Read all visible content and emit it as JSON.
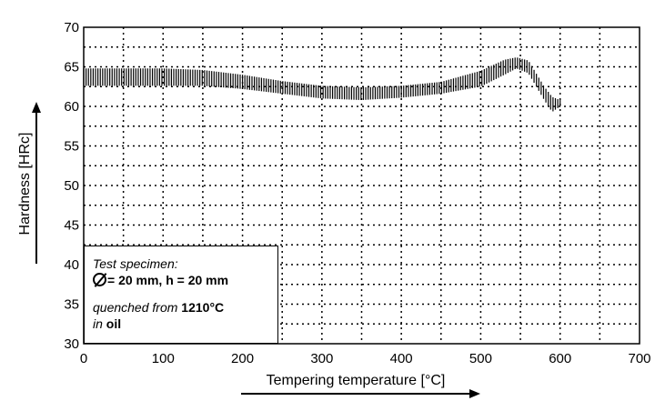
{
  "chart_data": {
    "type": "area",
    "xlabel": "Tempering temperature [°C]",
    "ylabel": "Hardness [HRc]",
    "xlim": [
      0,
      700
    ],
    "ylim": [
      30,
      70
    ],
    "xticks": [
      "0",
      "100",
      "200",
      "300",
      "400",
      "500",
      "600",
      "700"
    ],
    "yticks": [
      "30",
      "35",
      "40",
      "45",
      "50",
      "55",
      "60",
      "65",
      "70"
    ],
    "grid": true,
    "series": [
      {
        "x": [
          0,
          50,
          100,
          150,
          200,
          250,
          300,
          350,
          400,
          450,
          500,
          530,
          545,
          560,
          580,
          590,
          600
        ],
        "upper": [
          64.8,
          64.8,
          64.8,
          64.6,
          64.0,
          63.2,
          62.6,
          62.4,
          62.6,
          63.1,
          64.5,
          65.9,
          66.2,
          65.8,
          62.5,
          61.2,
          60.8
        ],
        "lower": [
          62.6,
          62.6,
          62.6,
          62.6,
          62.2,
          61.6,
          61.0,
          60.8,
          61.1,
          61.6,
          62.5,
          64.0,
          64.8,
          64.2,
          60.8,
          59.3,
          60.0
        ]
      }
    ],
    "legend": {
      "title": "Test specimen:",
      "dimension_text": "= 20 mm, h = 20 mm",
      "quench_prefix": "quenched from",
      "quench_temp": "1210°C",
      "medium_prefix": "in",
      "medium": "oil"
    }
  },
  "colors": {
    "band": "#000000",
    "grid": "#000000"
  }
}
